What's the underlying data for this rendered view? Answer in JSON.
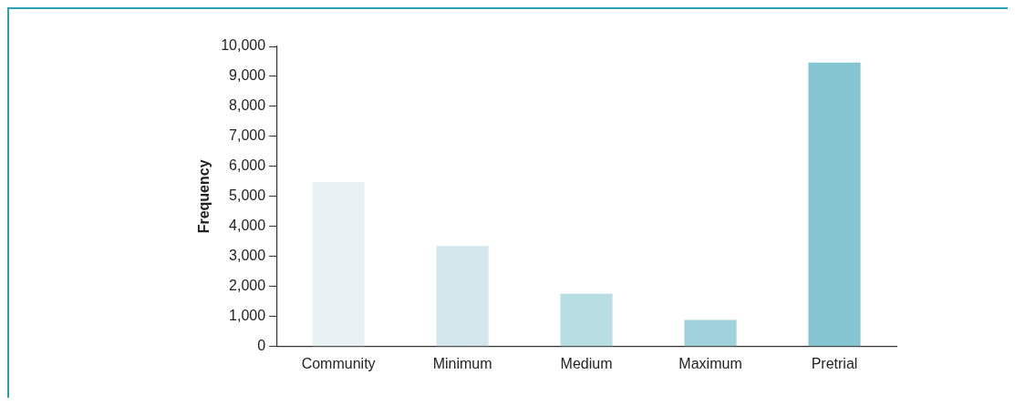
{
  "chart_data": {
    "type": "bar",
    "ylabel": "Frequency",
    "categories": [
      "Community",
      "Minimum",
      "Medium",
      "Maximum",
      "Pretrial"
    ],
    "values": [
      5480,
      3350,
      1760,
      890,
      9460
    ],
    "colors": [
      "#e8f1f4",
      "#d3e6ec",
      "#b8dde3",
      "#9fd2da",
      "#85c5d1"
    ],
    "ylim": [
      0,
      10000
    ],
    "yticks": [
      {
        "value": 0,
        "label": "0"
      },
      {
        "value": 1000,
        "label": "1,000"
      },
      {
        "value": 2000,
        "label": "2,000"
      },
      {
        "value": 3000,
        "label": "3,000"
      },
      {
        "value": 4000,
        "label": "4,000"
      },
      {
        "value": 5000,
        "label": "5,000"
      },
      {
        "value": 6000,
        "label": "6,000"
      },
      {
        "value": 7000,
        "label": "7,000"
      },
      {
        "value": 8000,
        "label": "8,000"
      },
      {
        "value": 9000,
        "label": "9,000"
      },
      {
        "value": 10000,
        "label": "10,000"
      }
    ],
    "grid": false,
    "legend": false
  }
}
